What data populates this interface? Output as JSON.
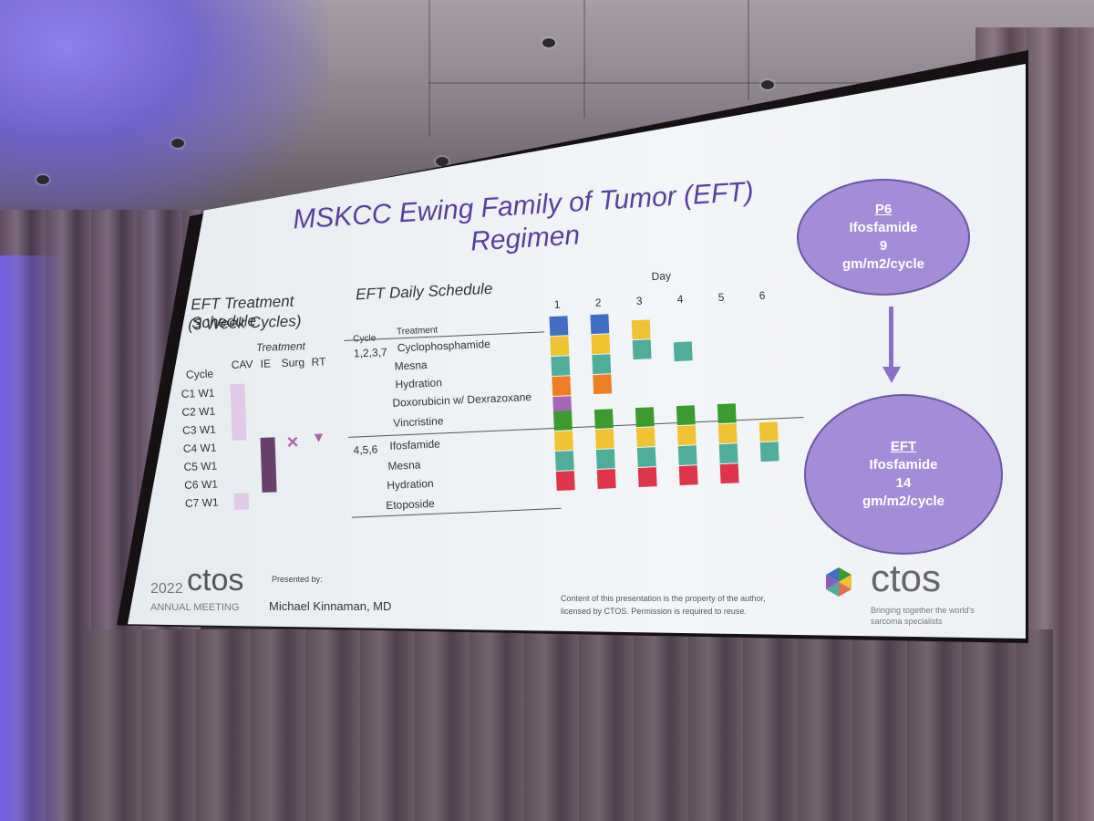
{
  "slide": {
    "title_line1": "MSKCC Ewing Family of Tumor (EFT)",
    "title_line2": "Regimen",
    "treatment_schedule": {
      "title_line1": "EFT Treatment Schedule",
      "title_line2": "(3 Week Cycles)",
      "header_treatment": "Treatment",
      "header_cycle": "Cycle",
      "columns": [
        "CAV",
        "IE",
        "Surg",
        "RT"
      ],
      "rows": [
        "C1 W1",
        "C2 W1",
        "C3 W1",
        "C4 W1",
        "C5 W1",
        "C6 W1",
        "C7 W1"
      ],
      "cav_color": "#e3c9e8",
      "ie_color": "#6b3f6b",
      "surg_mark": "×",
      "rt_mark": "▼"
    },
    "daily_schedule": {
      "title": "EFT Daily Schedule",
      "day_label": "Day",
      "days": [
        "1",
        "2",
        "3",
        "4",
        "5",
        "6"
      ],
      "header_cycle": "Cycle",
      "header_treatment": "Treatment",
      "group1_cycles": "1,2,3,7",
      "group1_treatments": [
        "Cyclophosphamide",
        "Mesna",
        "Hydration",
        "Doxorubicin w/ Dexrazoxane",
        "Vincristine"
      ],
      "group2_cycles": "4,5,6",
      "group2_treatments": [
        "Ifosfamide",
        "Mesna",
        "Hydration",
        "Etoposide"
      ],
      "colors": {
        "blue": "#3f6fc4",
        "yellow": "#f1c232",
        "teal": "#4fae9a",
        "orange": "#ef7d22",
        "purple": "#a566b8",
        "green": "#3a9b2e",
        "red": "#e0344a"
      }
    },
    "circle_p6": {
      "line1": "P6",
      "line2": "Ifosfamide",
      "line3": "9",
      "line4": "gm/m2/cycle"
    },
    "circle_eft": {
      "line1": "EFT",
      "line2": "Ifosfamide",
      "line3": "14",
      "line4": "gm/m2/cycle"
    },
    "footer": {
      "year": "2022",
      "brand": "ctos",
      "meeting": "ANNUAL MEETING",
      "presented_by": "Presented by:",
      "presenter": "Michael Kinnaman, MD",
      "copyright_line1": "Content of this presentation is the property of the author,",
      "copyright_line2": "licensed by CTOS. Permission is required to reuse.",
      "logo_text": "ctos",
      "tagline_line1": "Bringing together the world's",
      "tagline_line2": "sarcoma specialists"
    }
  }
}
